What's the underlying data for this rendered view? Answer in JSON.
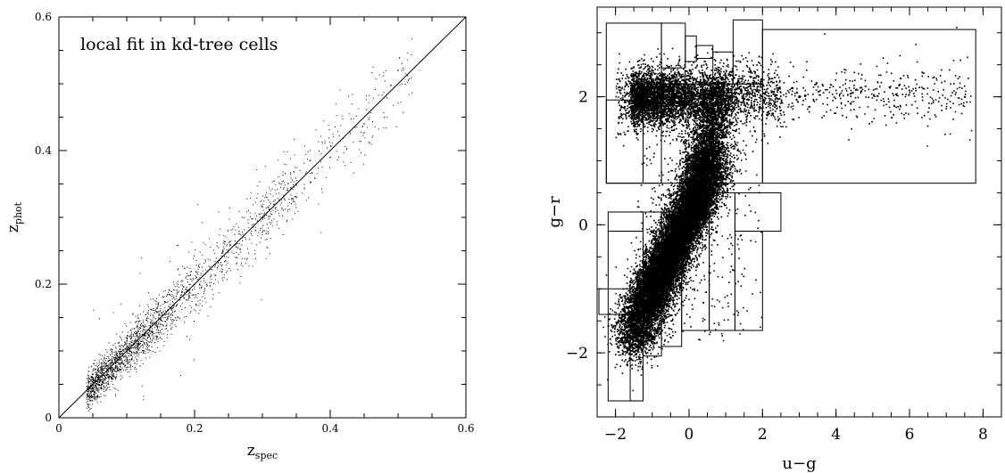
{
  "chart_data": [
    {
      "type": "scatter",
      "title": "",
      "annotation": "local fit in kd-tree cells",
      "xlabel_main": "z",
      "xlabel_sub": "spec",
      "ylabel_main": "z",
      "ylabel_sub": "phot",
      "xlim": [
        0,
        0.6
      ],
      "ylim": [
        0,
        0.6
      ],
      "x_ticks": [
        0,
        0.2,
        0.4,
        0.6
      ],
      "x_tick_labels": [
        "0",
        "0.2",
        "0.4",
        "0.6"
      ],
      "y_ticks": [
        0,
        0.2,
        0.4,
        0.6
      ],
      "y_tick_labels": [
        "0",
        "0.2",
        "0.4",
        "0.6"
      ],
      "x_minor_step": 0.05,
      "y_minor_step": 0.05,
      "reference_line": {
        "from": [
          0,
          0
        ],
        "to": [
          0.6,
          0.6
        ]
      },
      "points": [
        [
          0.05,
          0.06
        ],
        [
          0.08,
          0.08
        ],
        [
          0.1,
          0.1
        ],
        [
          0.15,
          0.14
        ],
        [
          0.2,
          0.2
        ],
        [
          0.25,
          0.25
        ],
        [
          0.3,
          0.3
        ],
        [
          0.35,
          0.35
        ],
        [
          0.4,
          0.39
        ],
        [
          0.45,
          0.44
        ],
        [
          0.5,
          0.52
        ]
      ],
      "point_color": "#000000",
      "grid": false
    },
    {
      "type": "scatter",
      "title": "",
      "xlabel": "u−g",
      "ylabel": "g−r",
      "xlim": [
        -2.5,
        8.5
      ],
      "ylim": [
        -3.0,
        3.4
      ],
      "x_ticks": [
        -2,
        0,
        2,
        4,
        6,
        8
      ],
      "x_tick_labels": [
        "−2",
        "0",
        "2",
        "4",
        "6",
        "8"
      ],
      "y_ticks": [
        -2,
        0,
        2
      ],
      "y_tick_labels": [
        "−2",
        "0",
        "2"
      ],
      "x_minor_step": 0.5,
      "y_minor_step": 0.5,
      "points": [
        [
          -1.5,
          -1.5
        ],
        [
          -1.0,
          -1.0
        ],
        [
          -0.5,
          -0.5
        ],
        [
          0,
          0
        ],
        [
          0.3,
          0.5
        ],
        [
          0.5,
          1.0
        ],
        [
          0.5,
          2.0
        ],
        [
          2.0,
          2.0
        ],
        [
          4.0,
          2.1
        ],
        [
          6.0,
          2.1
        ],
        [
          7.5,
          2.0
        ]
      ],
      "cells": [
        [
          -2.25,
          0.65,
          -0.75,
          3.15
        ],
        [
          -0.75,
          2.45,
          -0.1,
          3.15
        ],
        [
          -0.1,
          2.55,
          0.2,
          2.95
        ],
        [
          0.2,
          2.6,
          0.65,
          2.8
        ],
        [
          0.65,
          2.2,
          1.2,
          2.7
        ],
        [
          1.2,
          2.2,
          2.0,
          3.2
        ],
        [
          2.0,
          0.65,
          7.8,
          3.05
        ],
        [
          -2.25,
          0.65,
          -1.25,
          1.95
        ],
        [
          -1.25,
          0.65,
          2.0,
          2.2
        ],
        [
          1.25,
          -0.1,
          2.5,
          0.5
        ],
        [
          1.25,
          -1.65,
          2.0,
          -0.1
        ],
        [
          0.55,
          -1.65,
          1.25,
          0.5
        ],
        [
          -0.2,
          -1.65,
          0.55,
          0.5
        ],
        [
          -0.75,
          -1.9,
          -0.2,
          0.2
        ],
        [
          -1.25,
          -2.05,
          -0.75,
          0.2
        ],
        [
          -2.2,
          -2.75,
          -1.25,
          -0.1
        ],
        [
          -1.6,
          -2.75,
          -1.25,
          -1.4
        ],
        [
          -2.45,
          -1.4,
          -1.25,
          -1.0
        ],
        [
          -2.2,
          -0.1,
          -1.25,
          0.2
        ]
      ],
      "point_color": "#000000",
      "grid": false
    }
  ]
}
